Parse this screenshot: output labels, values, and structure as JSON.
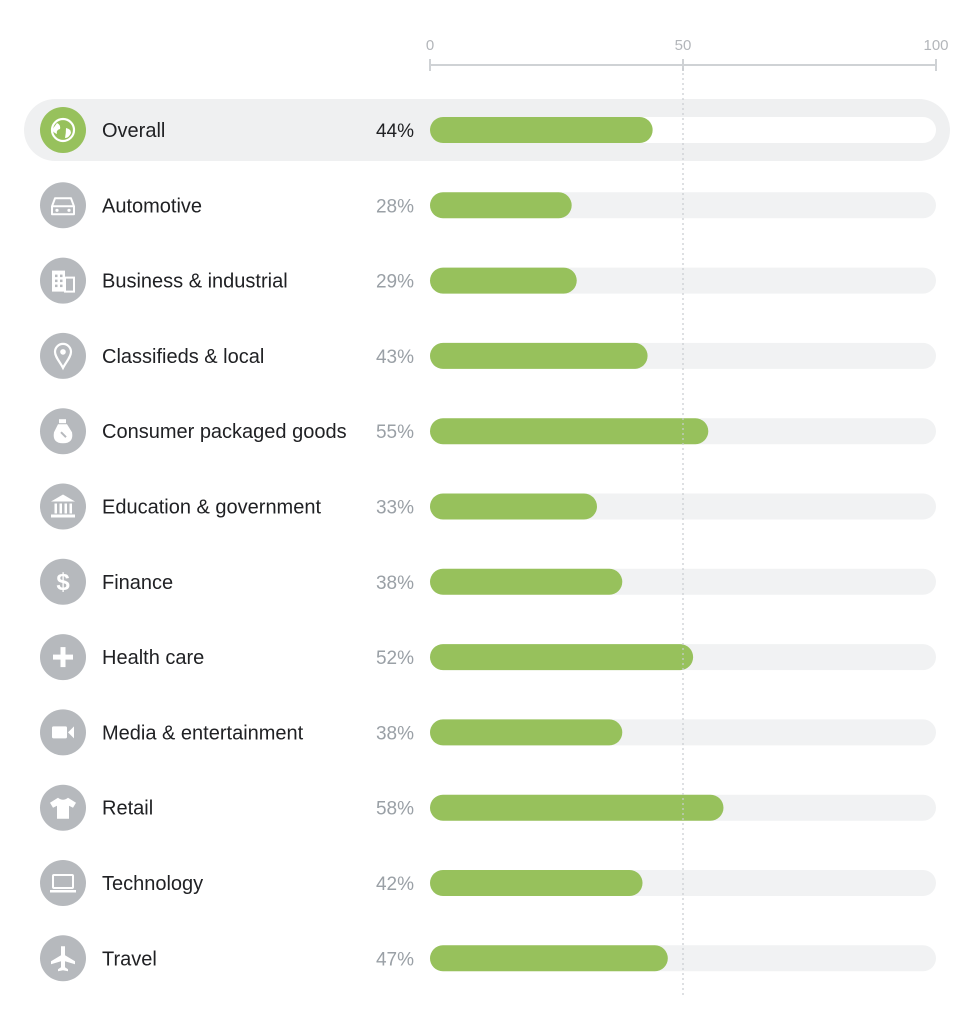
{
  "colors": {
    "bar": "#97c15c",
    "track": "#f1f2f3",
    "highlight_row": "#eff0f1",
    "icon_bg": "#b6b9bd",
    "icon_bg_highlight": "#97c15c",
    "axis": "#cfd2d5",
    "reference_line": "#c9ccd0"
  },
  "chart_data": {
    "type": "bar",
    "orientation": "horizontal",
    "xlim": [
      0,
      100
    ],
    "x_ticks": [
      "0",
      "50",
      "100"
    ],
    "reference_line": 50,
    "grid": false,
    "highlighted_category": "Overall",
    "categories": [
      "Overall",
      "Automotive",
      "Business & industrial",
      "Classifieds & local",
      "Consumer packaged goods",
      "Education & government",
      "Finance",
      "Health care",
      "Media & entertainment",
      "Retail",
      "Technology",
      "Travel"
    ],
    "values": [
      44,
      28,
      29,
      43,
      55,
      33,
      38,
      52,
      38,
      58,
      42,
      47
    ],
    "value_labels": [
      "44%",
      "28%",
      "29%",
      "43%",
      "55%",
      "33%",
      "38%",
      "52%",
      "38%",
      "58%",
      "42%",
      "47%"
    ],
    "icons": [
      "globe-icon",
      "car-icon",
      "building-icon",
      "location-pin-icon",
      "bottle-icon",
      "bank-icon",
      "dollar-icon",
      "plus-icon",
      "video-camera-icon",
      "tshirt-icon",
      "laptop-icon",
      "airplane-icon"
    ]
  }
}
